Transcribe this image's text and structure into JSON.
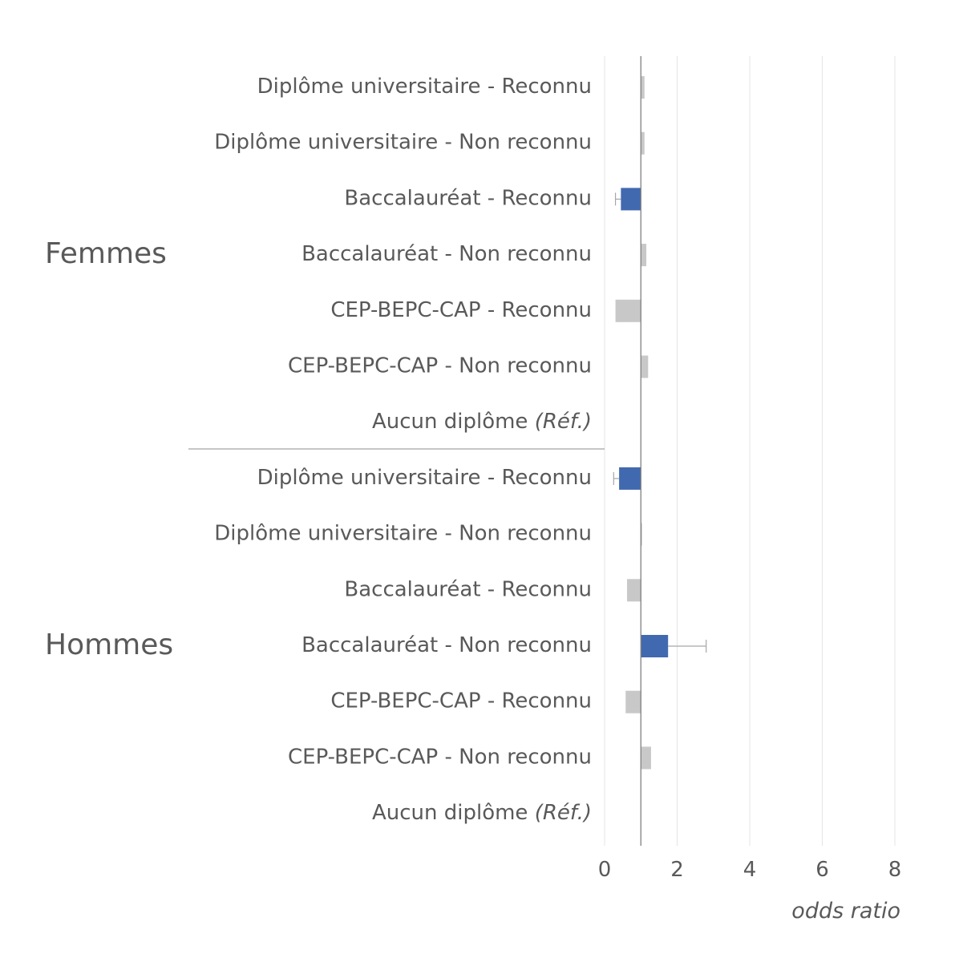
{
  "chart_data": {
    "type": "bar",
    "orientation": "horizontal",
    "xlabel": "odds ratio",
    "xlim": [
      0,
      8
    ],
    "xticks": [
      0,
      2,
      4,
      6,
      8
    ],
    "reference_line": 1,
    "grid": true,
    "colors": {
      "significant": "#4169B0",
      "not_significant": "#C8C8C8",
      "error_bar": "#A6A6A6",
      "text": "#595959",
      "gridline": "#E4E4E4",
      "baseline": "#7F7F7F"
    },
    "groups": [
      {
        "name": "Femmes",
        "categories": [
          {
            "main": "Diplôme universitaire - Reconnu",
            "ref": "",
            "value": 1.1,
            "significant": false
          },
          {
            "main": "Diplôme universitaire - Non reconnu",
            "ref": "",
            "value": 1.1,
            "significant": false
          },
          {
            "main": "Baccalauréat - Reconnu",
            "ref": "",
            "value": 0.45,
            "ci_low": 0.3,
            "significant": true
          },
          {
            "main": "Baccalauréat - Non reconnu",
            "ref": "",
            "value": 1.15,
            "significant": false
          },
          {
            "main": "CEP-BEPC-CAP - Reconnu",
            "ref": "",
            "value": 0.3,
            "significant": false
          },
          {
            "main": "CEP-BEPC-CAP - Non reconnu",
            "ref": "",
            "value": 1.2,
            "significant": false
          },
          {
            "main": "Aucun diplôme ",
            "ref": "(Réf.)",
            "value": 1.0,
            "significant": false
          }
        ]
      },
      {
        "name": "Hommes",
        "categories": [
          {
            "main": "Diplôme universitaire - Reconnu",
            "ref": "",
            "value": 0.4,
            "ci_low": 0.25,
            "significant": true
          },
          {
            "main": "Diplôme universitaire - Non reconnu",
            "ref": "",
            "value": 1.02,
            "significant": false
          },
          {
            "main": "Baccalauréat - Reconnu",
            "ref": "",
            "value": 0.62,
            "significant": false
          },
          {
            "main": "Baccalauréat - Non reconnu",
            "ref": "",
            "value": 1.75,
            "ci_high": 2.8,
            "significant": true
          },
          {
            "main": "CEP-BEPC-CAP - Reconnu",
            "ref": "",
            "value": 0.58,
            "significant": false
          },
          {
            "main": "CEP-BEPC-CAP - Non reconnu",
            "ref": "",
            "value": 1.28,
            "significant": false
          },
          {
            "main": "Aucun diplôme ",
            "ref": "(Réf.)",
            "value": 1.0,
            "significant": false
          }
        ]
      }
    ]
  }
}
